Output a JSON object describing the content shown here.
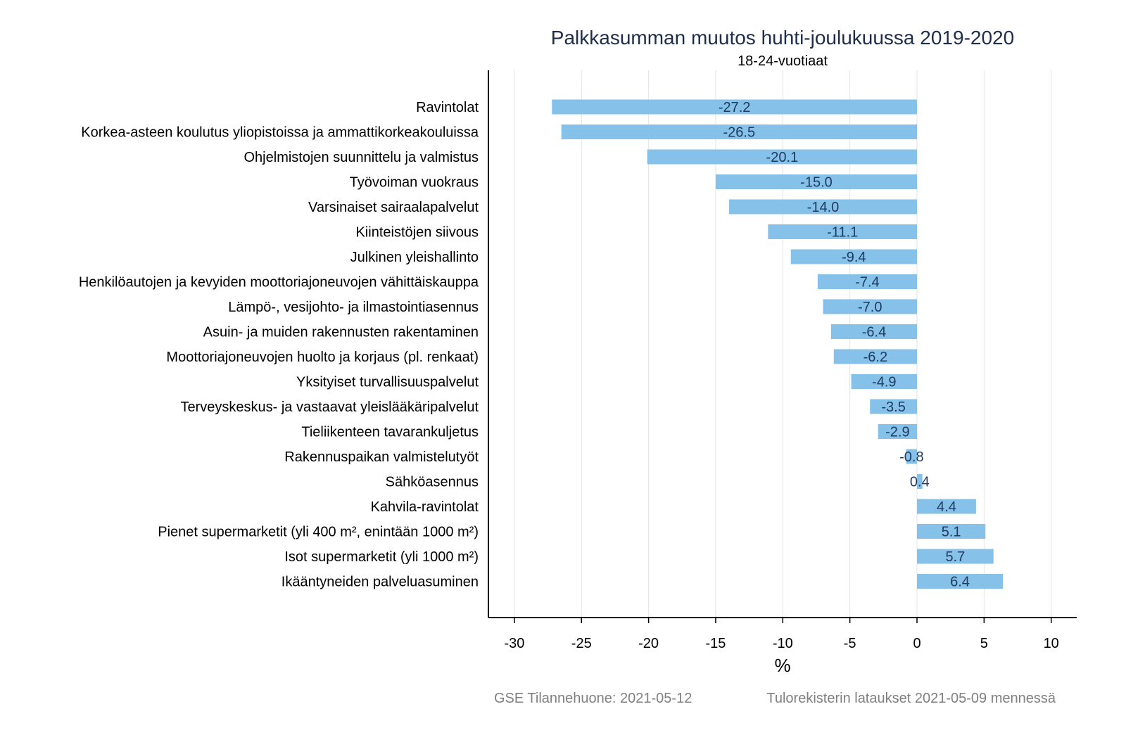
{
  "chart_data": {
    "type": "bar",
    "orientation": "horizontal",
    "title": "Palkkasumman muutos huhti-joulukuussa 2019-2020",
    "subtitle": "18-24-vuotiaat",
    "xlabel": "%",
    "ylabel": "",
    "xlim": [
      -32,
      12
    ],
    "xticks": [
      -30,
      -25,
      -20,
      -15,
      -10,
      -5,
      0,
      5,
      10
    ],
    "grid": true,
    "categories": [
      "Ravintolat",
      "Korkea-asteen koulutus yliopistoissa ja ammattikorkeakouluissa",
      "Ohjelmistojen suunnittelu ja valmistus",
      "Työvoiman vuokraus",
      "Varsinaiset sairaalapalvelut",
      "Kiinteistöjen siivous",
      "Julkinen yleishallinto",
      "Henkilöautojen ja kevyiden moottoriajoneuvojen vähittäiskauppa",
      "Lämpö-, vesijohto- ja ilmastointiasennus",
      "Asuin- ja muiden rakennusten rakentaminen",
      "Moottoriajoneuvojen huolto ja korjaus (pl. renkaat)",
      "Yksityiset turvallisuuspalvelut",
      "Terveyskeskus- ja vastaavat yleislääkäripalvelut",
      "Tieliikenteen tavarankuljetus",
      "Rakennuspaikan valmistelutyöt",
      "Sähköasennus",
      "Kahvila-ravintolat",
      "Pienet supermarketit (yli 400 m², enintään 1000 m²)",
      "Isot supermarketit (yli 1000 m²)",
      "Ikääntyneiden palveluasuminen"
    ],
    "values": [
      -27.2,
      -26.5,
      -20.1,
      -15.0,
      -14.0,
      -11.1,
      -9.4,
      -7.4,
      -7.0,
      -6.4,
      -6.2,
      -4.9,
      -3.5,
      -2.9,
      -0.8,
      0.4,
      4.4,
      5.1,
      5.7,
      6.4
    ],
    "bar_color": "#85c1e9",
    "label_color": "#1f3a5f",
    "title_color": "#1f2d4d"
  },
  "footer": {
    "left": "GSE Tilannehuone: 2021-05-12",
    "right": "Tulorekisterin lataukset 2021-05-09 mennessä"
  }
}
